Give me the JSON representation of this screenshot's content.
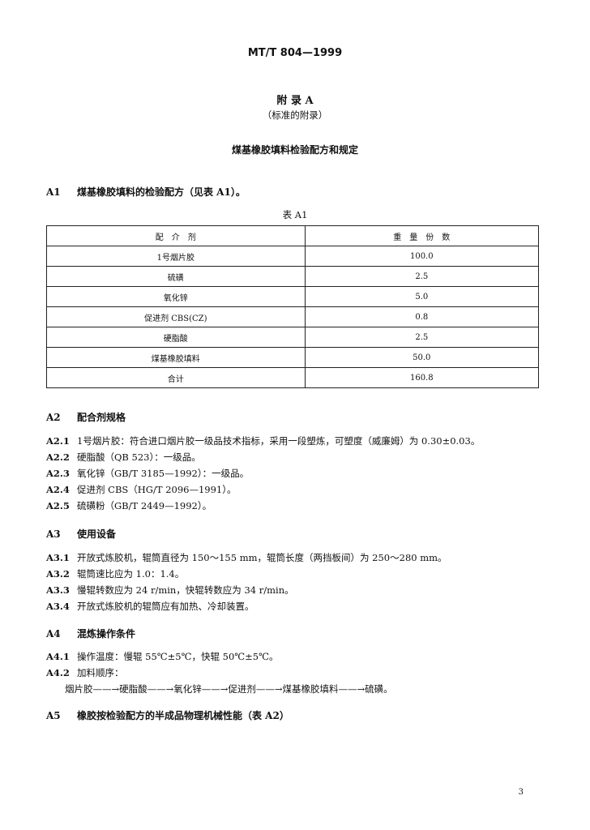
{
  "header": "MT/T 804—1999",
  "appendix": {
    "title": "附 录 A",
    "subtitle": "（标准的附录）",
    "heading": "煤基橡胶填料检验配方和规定"
  },
  "a1": {
    "num": "A1",
    "text": "煤基橡胶填料的检验配方（见表 A1）。"
  },
  "table": {
    "caption": "表 A1",
    "headers": [
      "配　介　剂",
      "重　量　份　数"
    ],
    "rows": [
      [
        "1号烟片胶",
        "100.0"
      ],
      [
        "硫磺",
        "2.5"
      ],
      [
        "氧化锌",
        "5.0"
      ],
      [
        "促进剂 CBS(CZ)",
        "0.8"
      ],
      [
        "硬脂酸",
        "2.5"
      ],
      [
        "煤基橡胶填料",
        "50.0"
      ],
      [
        "合计",
        "160.8"
      ]
    ]
  },
  "a2": {
    "num": "A2",
    "title": "配合剂规格",
    "items": [
      {
        "num": "A2.1",
        "text": "1号烟片胶：符合进口烟片胶一级品技术指标，采用一段塑炼，可塑度（威廉姆）为 0.30±0.03。"
      },
      {
        "num": "A2.2",
        "text": "硬脂酸（QB 523）：一级品。"
      },
      {
        "num": "A2.3",
        "text": "氧化锌（GB/T 3185—1992）：一级品。"
      },
      {
        "num": "A2.4",
        "text": "促进剂 CBS（HG/T 2096—1991）。"
      },
      {
        "num": "A2.5",
        "text": "硫磺粉（GB/T 2449—1992）。"
      }
    ]
  },
  "a3": {
    "num": "A3",
    "title": "使用设备",
    "items": [
      {
        "num": "A3.1",
        "text": "开放式炼胶机，辊筒直径为 150～155 mm，辊筒长度（两挡板间）为 250～280 mm。"
      },
      {
        "num": "A3.2",
        "text": "辊筒速比应为 1.0：1.4。"
      },
      {
        "num": "A3.3",
        "text": "慢辊转数应为 24 r/min，快辊转数应为 34 r/min。"
      },
      {
        "num": "A3.4",
        "text": "开放式炼胶机的辊筒应有加热、冷却装置。"
      }
    ]
  },
  "a4": {
    "num": "A4",
    "title": "混炼操作条件",
    "items": [
      {
        "num": "A4.1",
        "text": "操作温度：慢辊 55℃±5℃，快辊 50℃±5℃。"
      },
      {
        "num": "A4.2",
        "text": "加料顺序："
      }
    ],
    "sequence": "烟片胶——→硬脂酸——→氧化锌——→促进剂——→煤基橡胶填料——→硫磺。"
  },
  "a5": {
    "num": "A5",
    "text": "橡胶按检验配方的半成品物理机械性能（表 A2）"
  },
  "page_number": "3"
}
